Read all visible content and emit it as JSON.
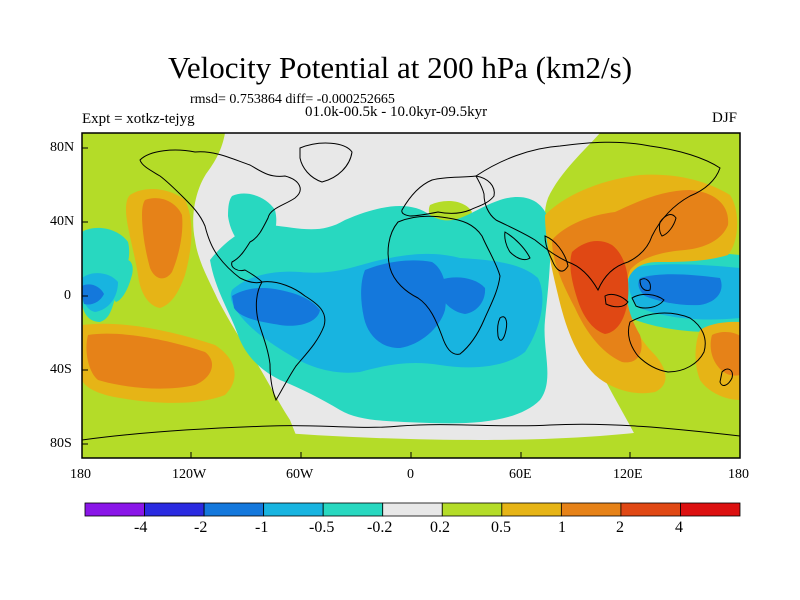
{
  "title": "Velocity Potential at 200 hPa (km2/s)",
  "stats": "rmsd= 0.753864 diff= -0.000252665",
  "experiment": "Expt = xotkz-tejyg",
  "period": "01.0k-00.5k - 10.0kyr-09.5kyr",
  "season": "DJF",
  "lat_labels": [
    "80N",
    "40N",
    "0",
    "40S",
    "80S"
  ],
  "lon_labels": [
    "180",
    "120W",
    "60W",
    "0",
    "60E",
    "120E",
    "180"
  ],
  "colorbar": {
    "levels": [
      "-4",
      "-2",
      "-1",
      "-0.5",
      "-0.2",
      "0.2",
      "0.5",
      "1",
      "2",
      "4"
    ],
    "colors": [
      "#8a16e8",
      "#2a2ae0",
      "#1478dc",
      "#18b4e0",
      "#28d8c0",
      "#e8e8e8",
      "#b4dc28",
      "#e6b416",
      "#e68218",
      "#e04814",
      "#dc1010"
    ]
  },
  "palette": {
    "neutral": "#e8e8e8",
    "green": "#b4dc28",
    "yellow": "#e6b416",
    "orange": "#e68218",
    "red": "#e04814",
    "cyan": "#28d8c0",
    "sky": "#18b4e0",
    "blue": "#1478dc",
    "coast": "#000000",
    "frame": "#000000"
  }
}
